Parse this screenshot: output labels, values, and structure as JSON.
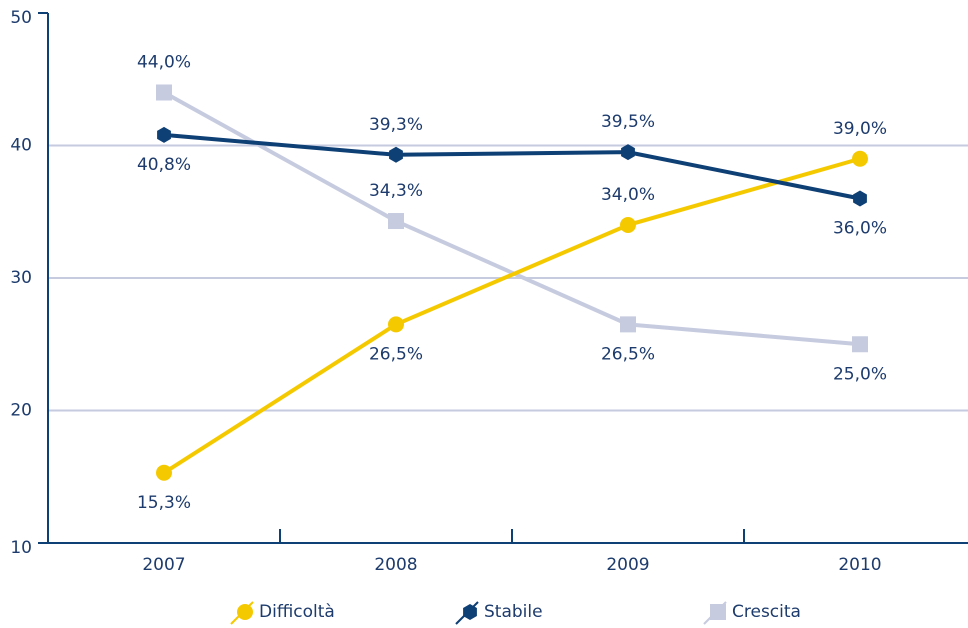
{
  "chart_data": {
    "type": "line",
    "categories": [
      "2007",
      "2008",
      "2009",
      "2010"
    ],
    "series": [
      {
        "name": "Difficoltà",
        "color": "#f5c900",
        "marker": "circle",
        "values": [
          15.3,
          26.5,
          34.0,
          39.0
        ],
        "value_labels": [
          "15,3%",
          "26,5%",
          "34,0%",
          "39,0%"
        ]
      },
      {
        "name": "Stabile",
        "color": "#0e3f75",
        "marker": "hexagon",
        "values": [
          40.8,
          39.3,
          39.5,
          36.0
        ],
        "value_labels": [
          "40,8%",
          "39,3%",
          "39,5%",
          "36,0%"
        ]
      },
      {
        "name": "Crescita",
        "color": "#c6cbdf",
        "marker": "square",
        "values": [
          44.0,
          34.3,
          26.5,
          25.0
        ],
        "value_labels": [
          "44,0%",
          "34,3%",
          "26,5%",
          "25,0%"
        ]
      }
    ],
    "ylim": [
      10,
      50
    ],
    "yticks": [
      10,
      20,
      30,
      40,
      50
    ],
    "grid": true,
    "legend": "bottom"
  }
}
